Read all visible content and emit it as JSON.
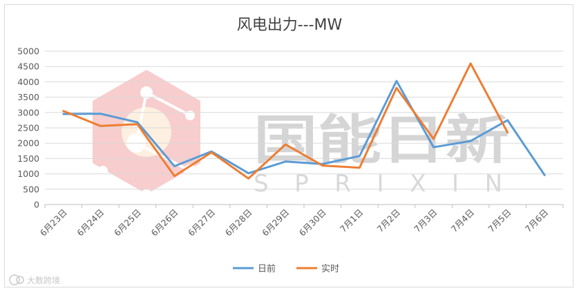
{
  "chart_data": {
    "type": "line",
    "title": "风电出力---MW",
    "categories": [
      "6月23日",
      "6月24日",
      "6月25日",
      "6月26日",
      "6月27日",
      "6月28日",
      "6月29日",
      "6月30日",
      "7月1日",
      "7月2日",
      "7月3日",
      "7月4日",
      "7月5日",
      "7月6日"
    ],
    "ylim": [
      0,
      5000
    ],
    "yticks": [
      0,
      500,
      1000,
      1500,
      2000,
      2500,
      3000,
      3500,
      4000,
      4500,
      5000
    ],
    "grid": true,
    "legend_position": "bottom",
    "series": [
      {
        "name": "日前",
        "color": "#5b9bd5",
        "values": [
          2950,
          2960,
          2680,
          1250,
          1730,
          1020,
          1400,
          1320,
          1580,
          4030,
          1870,
          2070,
          2750,
          960
        ]
      },
      {
        "name": "实时",
        "color": "#ed7d31",
        "values": [
          3050,
          2560,
          2620,
          930,
          1700,
          850,
          1960,
          1270,
          1200,
          3800,
          2140,
          4600,
          2350,
          null
        ]
      }
    ]
  },
  "watermark": {
    "brand_cn": "国能日新",
    "brand_en": "SPRIXIN",
    "logo_color": "#f4a6a6"
  },
  "credit": {
    "text": "大数跨境"
  }
}
